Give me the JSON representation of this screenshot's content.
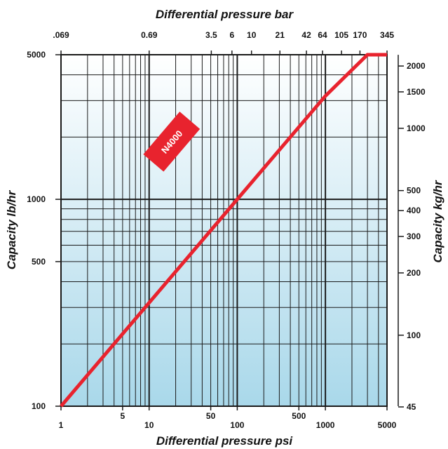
{
  "chart_data": {
    "type": "line",
    "title": "",
    "xlabel": "Differential pressure psi",
    "x2label": "Differential pressure bar",
    "ylabel": "Capacity lb/hr",
    "y2label": "Capacity kg/hr",
    "x_scale": "log",
    "y_scale": "log",
    "xlim": [
      1,
      5000
    ],
    "ylim": [
      100,
      5000
    ],
    "grid": true,
    "x_ticks": [
      "1",
      "5",
      "10",
      "50",
      "100",
      "500",
      "1000",
      "5000"
    ],
    "x_tick_values": [
      1,
      5,
      10,
      50,
      100,
      500,
      1000,
      5000
    ],
    "x2_ticks": [
      ".069",
      "0.69",
      "3.5",
      "6",
      "10",
      "21",
      "42",
      "64",
      "105",
      "170",
      "345"
    ],
    "x2_tick_values": [
      0.069,
      0.69,
      3.5,
      6,
      10,
      21,
      42,
      64,
      105,
      170,
      345
    ],
    "y_ticks": [
      "100",
      "500",
      "1000",
      "5000"
    ],
    "y_tick_values": [
      100,
      500,
      1000,
      5000
    ],
    "y2_ticks": [
      "45",
      "100",
      "200",
      "300",
      "400",
      "500",
      "1000",
      "1500",
      "2000"
    ],
    "y2_tick_values": [
      45,
      100,
      200,
      300,
      400,
      500,
      1000,
      1500,
      2000
    ],
    "series": [
      {
        "name": "N4000",
        "color": "#e8232e",
        "x": [
          1,
          100,
          1000,
          3000,
          5000
        ],
        "y": [
          100,
          1000,
          3160,
          5000,
          5000
        ]
      }
    ]
  }
}
